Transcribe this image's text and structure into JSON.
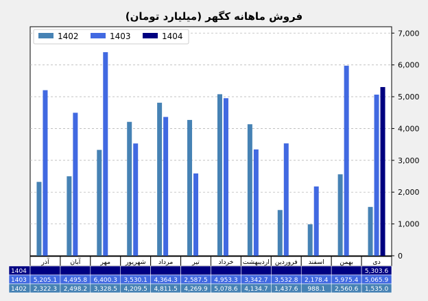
{
  "chart_data": {
    "type": "bar",
    "title": "فروش ماهانه کگهر (میلیارد تومان)",
    "xlabel": "",
    "ylabel": "",
    "categories": [
      "آذر",
      "آبان",
      "مهر",
      "شهریور",
      "مرداد",
      "تیر",
      "خرداد",
      "اردیبهشت",
      "فروردین",
      "اسفند",
      "بهمن",
      "دی"
    ],
    "series": [
      {
        "name": "1402",
        "color": "#4682b4",
        "values": [
          2322.3,
          2498.2,
          3328.5,
          4209.5,
          4811.5,
          4269.9,
          5078.6,
          4134.7,
          1437.6,
          988.1,
          2560.6,
          1535.0
        ]
      },
      {
        "name": "1403",
        "color": "#4169e1",
        "values": [
          5205.1,
          4495.8,
          6400.3,
          3530.1,
          4364.3,
          2587.5,
          4953.3,
          3342.7,
          3532.8,
          2178.4,
          5975.4,
          5065.9
        ]
      },
      {
        "name": "1404",
        "color": "#000080",
        "values": [
          null,
          null,
          null,
          null,
          null,
          null,
          null,
          null,
          null,
          null,
          null,
          5303.6
        ]
      }
    ],
    "ylim": [
      0,
      7200
    ],
    "yticks": [
      0,
      1000,
      2000,
      3000,
      4000,
      5000,
      6000,
      7000
    ],
    "ytick_labels": [
      "0",
      "1,000",
      "2,000",
      "3,000",
      "4,000",
      "5,000",
      "6,000",
      "7,000"
    ],
    "y_axis_side": "right",
    "legend_position": "top-left",
    "grid": "horizontal-dashed",
    "table": {
      "row_order": [
        "1404",
        "1403",
        "1402"
      ],
      "cells": {
        "1404": [
          "",
          "",
          "",
          "",
          "",
          "",
          "",
          "",
          "",
          "",
          "",
          "5,303.6"
        ],
        "1403": [
          "5,205.1",
          "4,495.8",
          "6,400.3",
          "3,530.1",
          "4,364.3",
          "2,587.5",
          "4,953.3",
          "3,342.7",
          "3,532.8",
          "2,178.4",
          "5,975.4",
          "5,065.9"
        ],
        "1402": [
          "2,322.3",
          "2,498.2",
          "3,328.5",
          "4,209.5",
          "4,811.5",
          "4,269.9",
          "5,078.6",
          "4,134.7",
          "1,437.6",
          "988.1",
          "2,560.6",
          "1,535.0"
        ]
      }
    }
  }
}
